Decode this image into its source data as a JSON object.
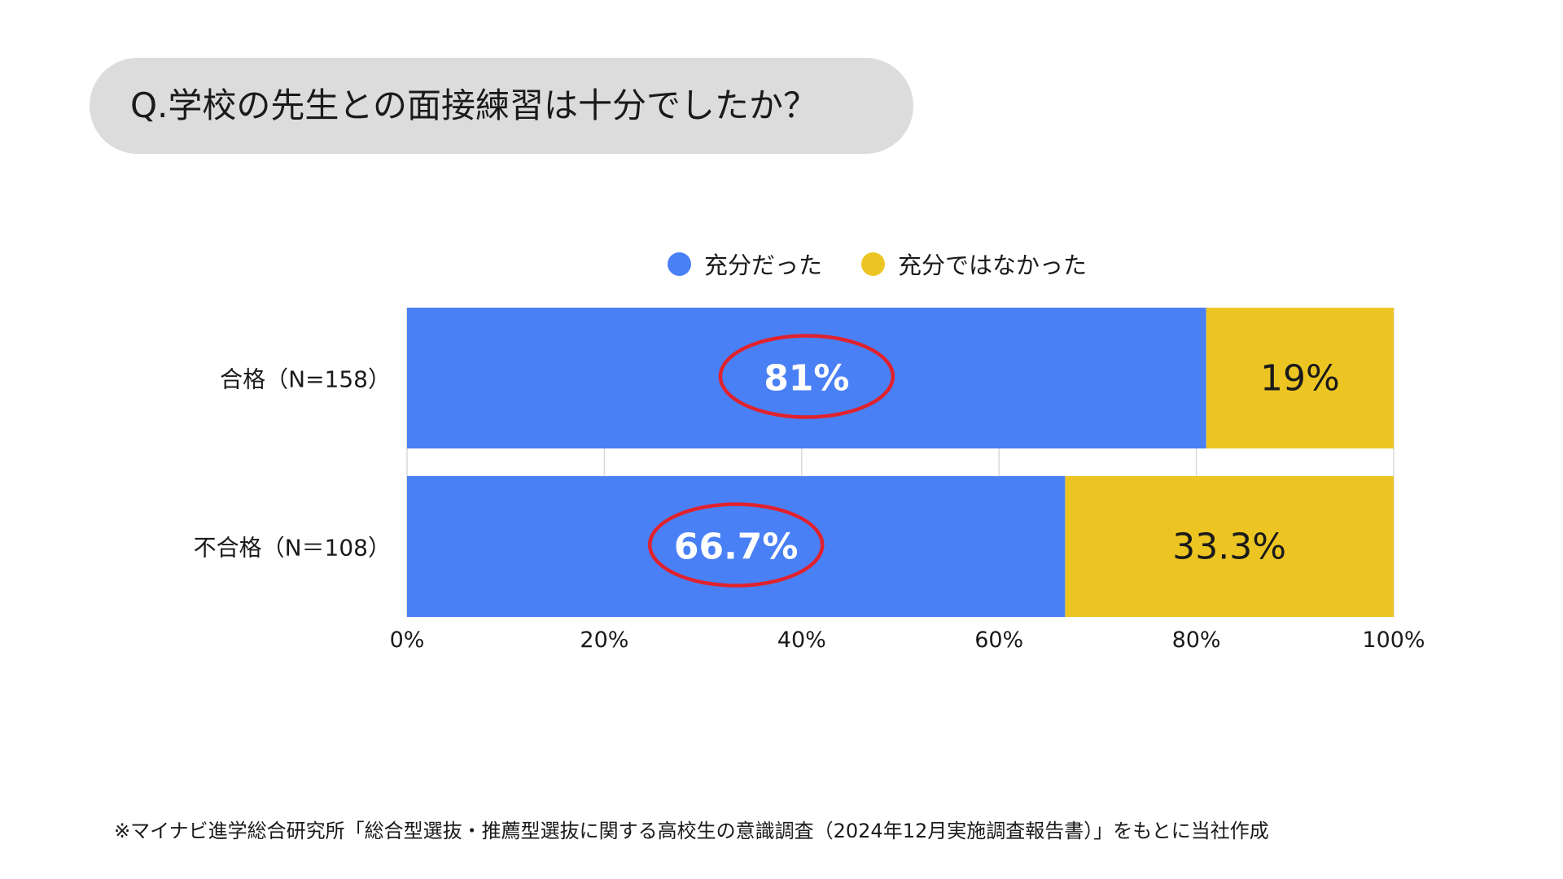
{
  "question": "Q.学校の先生との面接練習は十分でしたか？",
  "colors": {
    "series_1": "#4a80f5",
    "series_2": "#ecc522",
    "highlight_ring": "#e0222e"
  },
  "chart_data": {
    "type": "bar",
    "orientation": "horizontal",
    "stacked": true,
    "categories": [
      "合格（N=158）",
      "不合格（N＝108）"
    ],
    "series": [
      {
        "name": "充分だった",
        "values": [
          81,
          66.7
        ],
        "labels": [
          "81%",
          "66.7%"
        ]
      },
      {
        "name": "充分ではなかった",
        "values": [
          19,
          33.3
        ],
        "labels": [
          "19%",
          "33.3%"
        ]
      }
    ],
    "xlim": [
      0,
      100
    ],
    "xticks": [
      "0%",
      "20%",
      "40%",
      "60%",
      "80%",
      "100%"
    ],
    "grid": true,
    "legend_position": "top"
  },
  "footnote": "※マイナビ進学総合研究所「総合型選抜・推薦型選抜に関する高校生の意識調査（2024年12月実施調査報告書）」をもとに当社作成"
}
